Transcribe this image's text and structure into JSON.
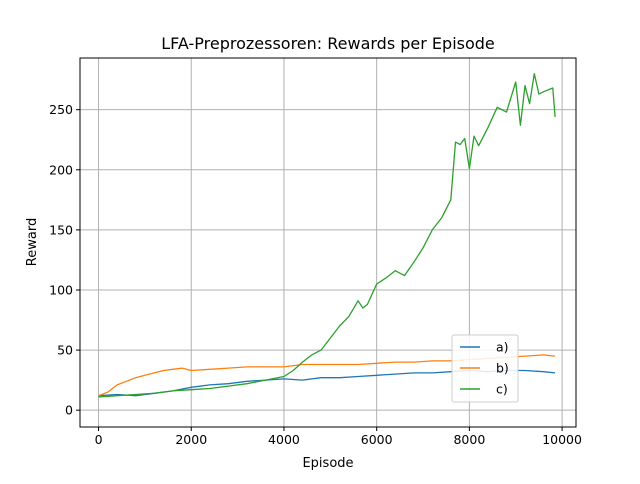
{
  "chart_data": {
    "type": "line",
    "title": "LFA-Preprozessoren: Rewards per Episode",
    "xlabel": "Episode",
    "ylabel": "Reward",
    "xlim": [
      -400,
      10300
    ],
    "ylim": [
      -14,
      293
    ],
    "xticks": [
      0,
      2000,
      4000,
      6000,
      8000,
      10000
    ],
    "xtick_labels": [
      "0",
      "2000",
      "4000",
      "6000",
      "8000",
      "10000"
    ],
    "yticks": [
      0,
      50,
      100,
      150,
      200,
      250
    ],
    "ytick_labels": [
      "0",
      "50",
      "100",
      "150",
      "200",
      "250"
    ],
    "grid": true,
    "legend_position": "lower-right",
    "series": [
      {
        "name": "a)",
        "color": "#1f77b4",
        "x": [
          0,
          400,
          800,
          1200,
          1600,
          2000,
          2400,
          2800,
          3200,
          3600,
          4000,
          4400,
          4800,
          5200,
          5600,
          6000,
          6400,
          6800,
          7200,
          7600,
          8000,
          8400,
          8800,
          9200,
          9600,
          9850
        ],
        "y": [
          12,
          13,
          12,
          14,
          16,
          19,
          21,
          22,
          24,
          25,
          26,
          25,
          27,
          27,
          28,
          29,
          30,
          31,
          31,
          32,
          33,
          32,
          33,
          33,
          32,
          31
        ]
      },
      {
        "name": "b)",
        "color": "#ff7f0e",
        "x": [
          0,
          200,
          400,
          600,
          800,
          1000,
          1200,
          1400,
          1600,
          1800,
          2000,
          2400,
          2800,
          3200,
          3600,
          4000,
          4400,
          4800,
          5200,
          5600,
          6000,
          6400,
          6800,
          7200,
          7600,
          8000,
          8400,
          8800,
          9200,
          9600,
          9850
        ],
        "y": [
          12,
          15,
          21,
          24,
          27,
          29,
          31,
          33,
          34,
          35,
          33,
          34,
          35,
          36,
          36,
          36,
          38,
          38,
          38,
          38,
          39,
          40,
          40,
          41,
          41,
          42,
          43,
          44,
          45,
          46,
          45
        ]
      },
      {
        "name": "c)",
        "color": "#2ca02c",
        "x": [
          0,
          400,
          800,
          1200,
          1600,
          2000,
          2400,
          2800,
          3200,
          3600,
          4000,
          4200,
          4400,
          4600,
          4800,
          5000,
          5200,
          5400,
          5600,
          5700,
          5800,
          6000,
          6200,
          6400,
          6600,
          6800,
          7000,
          7200,
          7400,
          7600,
          7700,
          7800,
          7900,
          8000,
          8100,
          8200,
          8400,
          8600,
          8800,
          9000,
          9100,
          9200,
          9300,
          9400,
          9500,
          9600,
          9800,
          9850
        ],
        "y": [
          11,
          12,
          13,
          14,
          16,
          17,
          18,
          20,
          22,
          25,
          28,
          33,
          40,
          46,
          50,
          60,
          70,
          78,
          91,
          85,
          88,
          105,
          110,
          116,
          112,
          123,
          135,
          150,
          160,
          175,
          223,
          221,
          226,
          201,
          228,
          220,
          235,
          252,
          248,
          273,
          237,
          270,
          255,
          280,
          263,
          265,
          268,
          244
        ]
      }
    ]
  }
}
